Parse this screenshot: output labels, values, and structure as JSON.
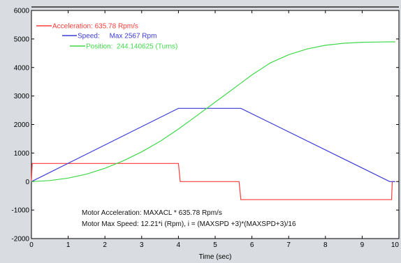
{
  "chart_data": {
    "type": "line",
    "xlabel": "Time (sec)",
    "ylabel": "",
    "xlim": [
      0,
      10
    ],
    "ylim": [
      -2000,
      6000
    ],
    "x_ticks": [
      "0",
      "1",
      "2",
      "3",
      "4",
      "5",
      "6",
      "7",
      "8",
      "9",
      "10"
    ],
    "y_ticks": [
      "-2000",
      "-1000",
      "0",
      "1000",
      "2000",
      "3000",
      "4000",
      "5000",
      "6000"
    ],
    "grid": false,
    "legend_position": "top-left",
    "series": [
      {
        "name": "Acceleration: 635.78 Rpm/s",
        "color": "#ff3b3b",
        "x": [
          0,
          0.02,
          4.0,
          4.05,
          5.65,
          5.7,
          9.8,
          9.82,
          9.9
        ],
        "values": [
          0,
          636,
          636,
          0,
          0,
          -636,
          -636,
          0,
          0
        ]
      },
      {
        "name": "Speed:     Max 2567 Rpm",
        "color": "#3a3ad8",
        "x": [
          0,
          4.0,
          5.7,
          9.75,
          9.9
        ],
        "values": [
          0,
          2567,
          2567,
          0,
          0
        ]
      },
      {
        "name": "Position:  244.140625 (Turns)",
        "color": "#3fd94a",
        "x": [
          0,
          0.5,
          1,
          1.5,
          2,
          2.5,
          3,
          3.5,
          4,
          4.5,
          5,
          5.5,
          5.7,
          6,
          6.5,
          7,
          7.5,
          8,
          8.5,
          9,
          9.5,
          9.75,
          9.9
        ],
        "values": [
          0,
          35,
          120,
          260,
          465,
          725,
          1040,
          1410,
          1840,
          2310,
          2785,
          3260,
          3450,
          3740,
          4160,
          4450,
          4650,
          4780,
          4850,
          4885,
          4895,
          4900,
          4900
        ]
      }
    ],
    "annotations": [
      "Motor Acceleration: MAXACL * 635.78 Rpm/s",
      "Motor Max Speed: 12.21*i (Rpm), i = (MAXSPD +3)*(MAXSPD+3)/16"
    ]
  }
}
